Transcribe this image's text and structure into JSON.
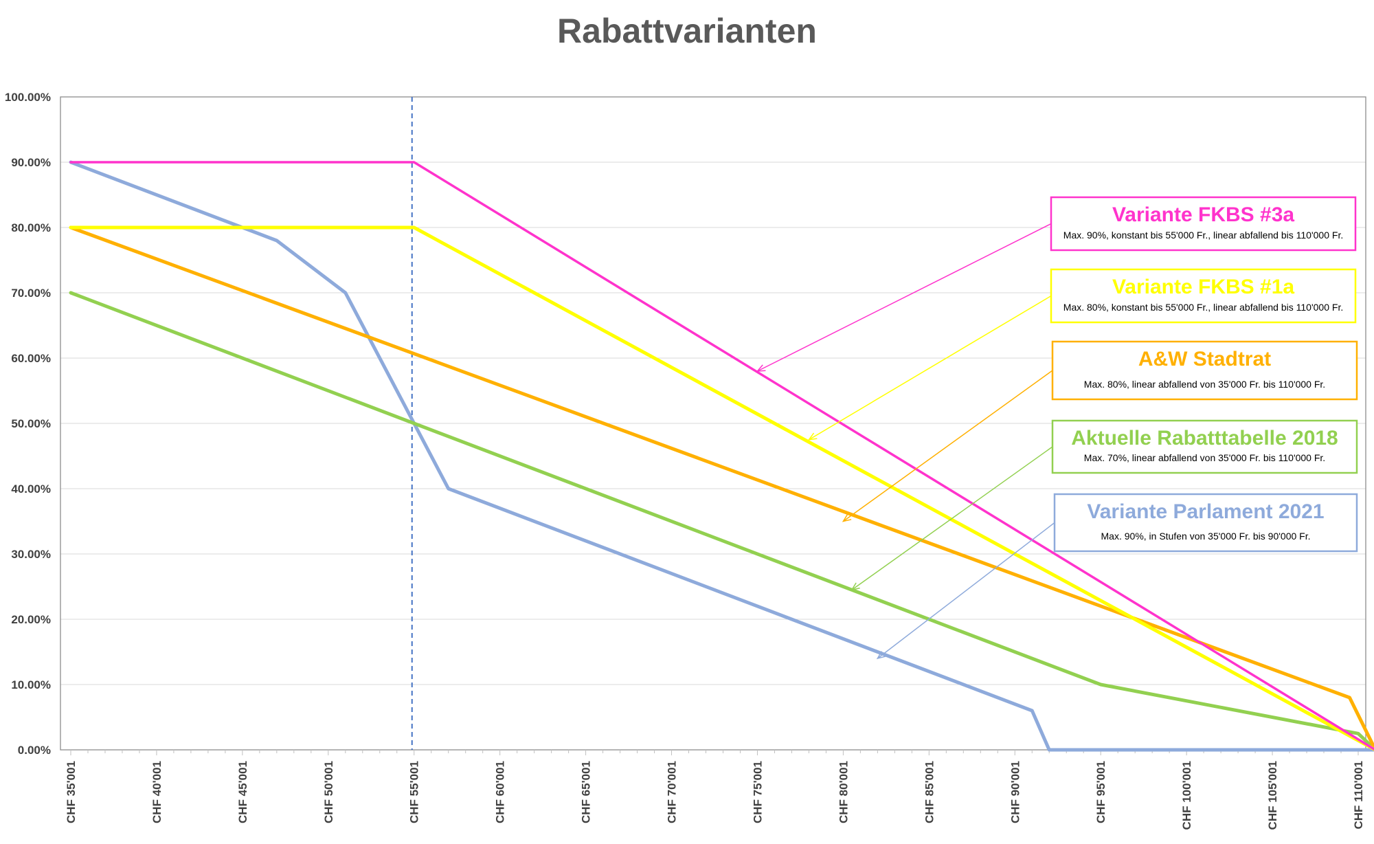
{
  "chart_data": {
    "type": "line",
    "title": "Rabattvarianten",
    "xlabel": "",
    "ylabel": "",
    "x_range": [
      35001,
      112001
    ],
    "ylim": [
      0,
      100
    ],
    "y_ticks": [
      "0.00%",
      "10.00%",
      "20.00%",
      "30.00%",
      "40.00%",
      "50.00%",
      "60.00%",
      "70.00%",
      "80.00%",
      "90.00%",
      "100.00%"
    ],
    "x_ticks": [
      {
        "value": 35001,
        "label": "CHF 35'001"
      },
      {
        "value": 40001,
        "label": "CHF 40'001"
      },
      {
        "value": 45001,
        "label": "CHF 45'001"
      },
      {
        "value": 50001,
        "label": "CHF 50'001"
      },
      {
        "value": 55001,
        "label": "CHF 55'001"
      },
      {
        "value": 60001,
        "label": "CHF 60'001"
      },
      {
        "value": 65001,
        "label": "CHF 65'001"
      },
      {
        "value": 70001,
        "label": "CHF 70'001"
      },
      {
        "value": 75001,
        "label": "CHF 75'001"
      },
      {
        "value": 80001,
        "label": "CHF 80'001"
      },
      {
        "value": 85001,
        "label": "CHF 85'001"
      },
      {
        "value": 90001,
        "label": "CHF 90'001"
      },
      {
        "value": 95001,
        "label": "CHF 95'001"
      },
      {
        "value": 100001,
        "label": "CHF 100'001"
      },
      {
        "value": 105001,
        "label": "CHF 105'001"
      },
      {
        "value": 110001,
        "label": "CHF 110'001"
      }
    ],
    "grid": "horizontal",
    "reference_line": {
      "x": 55001,
      "color": "#4472c4",
      "style": "dashed"
    },
    "series": [
      {
        "key": "fkbs3a",
        "color": "#ff33cc",
        "points": [
          [
            35001,
            90
          ],
          [
            55001,
            90
          ],
          [
            111001,
            0
          ]
        ]
      },
      {
        "key": "fkbs1a",
        "color": "#ffff00",
        "points": [
          [
            35001,
            80
          ],
          [
            55001,
            80
          ],
          [
            111001,
            0
          ]
        ]
      },
      {
        "key": "aw",
        "color": "#ffb000",
        "points": [
          [
            35001,
            80
          ],
          [
            109501,
            8
          ],
          [
            111001,
            0
          ]
        ]
      },
      {
        "key": "aktuell",
        "color": "#92d050",
        "points": [
          [
            35001,
            70
          ],
          [
            95001,
            10
          ],
          [
            110001,
            2.5
          ],
          [
            111001,
            0
          ]
        ]
      },
      {
        "key": "parlament",
        "color": "#8eaadb",
        "points": [
          [
            35001,
            90
          ],
          [
            47001,
            78
          ],
          [
            51001,
            70
          ],
          [
            57001,
            40
          ],
          [
            91001,
            6
          ],
          [
            92001,
            0
          ],
          [
            111001,
            0
          ]
        ]
      }
    ],
    "legend": [
      {
        "key": "fkbs3a",
        "title": "Variante FKBS #3a",
        "desc": "Max. 90%, konstant bis 55'000 Fr., linear abfallend bis 110'000 Fr.",
        "color": "#ff33cc",
        "pointer_to": [
          75001,
          58
        ]
      },
      {
        "key": "fkbs1a",
        "title": "Variante FKBS #1a",
        "desc": "Max. 80%, konstant bis 55'000 Fr., linear abfallend bis 110'000 Fr.",
        "color": "#ffff00",
        "pointer_to": [
          78001,
          47.5
        ]
      },
      {
        "key": "aw",
        "title": "A&W Stadtrat",
        "desc": "Max. 80%, linear abfallend von 35'000 Fr. bis 110'000 Fr.",
        "color": "#ffb000",
        "pointer_to": [
          80001,
          35
        ]
      },
      {
        "key": "aktuell",
        "title": "Aktuelle Rabatttabelle 2018",
        "desc": "Max. 70%, linear abfallend von 35'000 Fr. bis 110'000  Fr.",
        "color": "#92d050",
        "pointer_to": [
          80501,
          24.5
        ]
      },
      {
        "key": "parlament",
        "title": "Variante Parlament 2021",
        "desc": "Max. 90%, in Stufen von 35'000 Fr. bis 90'000 Fr.",
        "color": "#8eaadb",
        "pointer_to": [
          82001,
          14
        ]
      }
    ]
  }
}
